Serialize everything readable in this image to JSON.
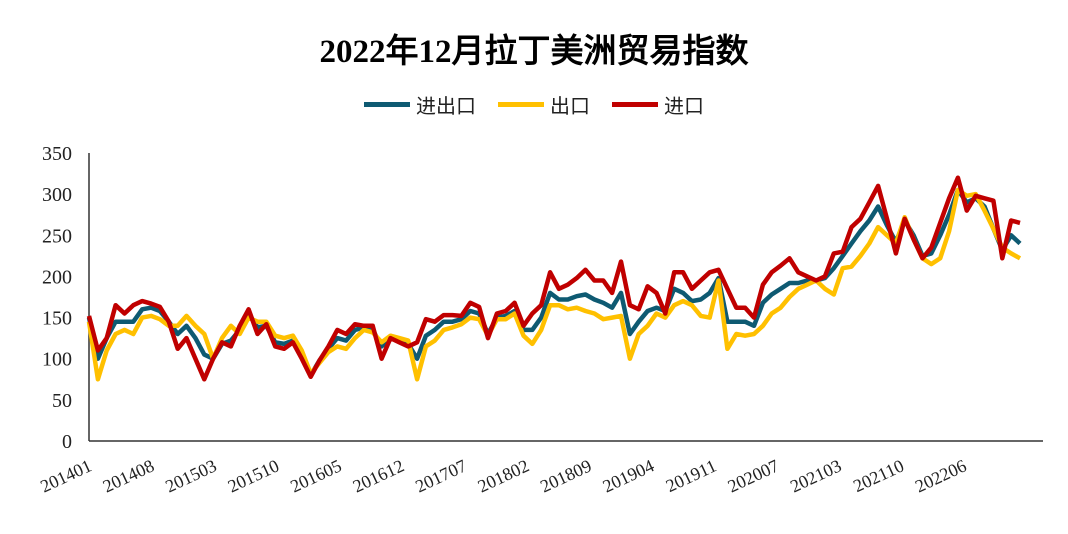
{
  "chart_data": {
    "type": "line",
    "title": "2022年12月拉丁美洲贸易指数",
    "xlabel": "",
    "ylabel": "",
    "ylim": [
      0,
      350
    ],
    "yticks": [
      0,
      50,
      100,
      150,
      200,
      250,
      300,
      350
    ],
    "x_tick_labels": [
      "201401",
      "201408",
      "201503",
      "201510",
      "201605",
      "201612",
      "201707",
      "201802",
      "201809",
      "201904",
      "201911",
      "202007",
      "202103",
      "202110",
      "202206"
    ],
    "grid": false,
    "legend_position": "top",
    "series": [
      {
        "name": "进出口",
        "color": "#0e5a72",
        "values": [
          150,
          100,
          125,
          145,
          145,
          145,
          160,
          162,
          158,
          145,
          130,
          140,
          125,
          105,
          100,
          118,
          122,
          135,
          155,
          138,
          140,
          120,
          118,
          122,
          105,
          80,
          98,
          112,
          125,
          122,
          135,
          138,
          135,
          115,
          125,
          122,
          118,
          100,
          128,
          135,
          145,
          145,
          148,
          158,
          155,
          130,
          150,
          152,
          158,
          135,
          135,
          150,
          180,
          172,
          172,
          176,
          178,
          172,
          168,
          162,
          180,
          130,
          145,
          158,
          162,
          158,
          185,
          180,
          170,
          172,
          180,
          198,
          145,
          145,
          145,
          140,
          168,
          178,
          185,
          192,
          192,
          195,
          195,
          198,
          210,
          225,
          240,
          255,
          268,
          285,
          262,
          242,
          268,
          250,
          225,
          228,
          250,
          275,
          305,
          290,
          295,
          285,
          258,
          232,
          250,
          240
        ]
      },
      {
        "name": "出口",
        "color": "#ffc000",
        "values": [
          145,
          75,
          110,
          130,
          135,
          130,
          150,
          152,
          148,
          140,
          140,
          152,
          140,
          130,
          100,
          125,
          140,
          130,
          150,
          145,
          145,
          128,
          125,
          128,
          110,
          82,
          95,
          108,
          115,
          112,
          125,
          135,
          132,
          120,
          128,
          125,
          122,
          75,
          115,
          122,
          135,
          138,
          142,
          150,
          148,
          128,
          148,
          148,
          155,
          128,
          118,
          135,
          165,
          165,
          160,
          162,
          158,
          155,
          148,
          150,
          152,
          100,
          130,
          140,
          155,
          150,
          165,
          170,
          165,
          152,
          150,
          195,
          112,
          130,
          128,
          130,
          140,
          155,
          162,
          175,
          185,
          190,
          195,
          185,
          178,
          210,
          212,
          225,
          240,
          260,
          250,
          240,
          272,
          245,
          222,
          215,
          222,
          255,
          305,
          298,
          300,
          280,
          258,
          235,
          228,
          222
        ]
      },
      {
        "name": "进口",
        "color": "#c00000",
        "values": [
          152,
          110,
          125,
          165,
          155,
          165,
          170,
          167,
          163,
          145,
          112,
          125,
          100,
          75,
          100,
          120,
          115,
          140,
          160,
          130,
          142,
          115,
          112,
          120,
          100,
          78,
          98,
          115,
          135,
          130,
          142,
          140,
          140,
          100,
          125,
          120,
          115,
          120,
          148,
          145,
          153,
          153,
          152,
          168,
          163,
          125,
          155,
          158,
          168,
          140,
          155,
          165,
          205,
          185,
          190,
          198,
          208,
          195,
          195,
          180,
          218,
          165,
          160,
          188,
          180,
          155,
          205,
          205,
          185,
          195,
          205,
          208,
          185,
          162,
          162,
          150,
          190,
          205,
          213,
          222,
          205,
          200,
          195,
          200,
          228,
          230,
          260,
          270,
          290,
          310,
          270,
          228,
          270,
          245,
          222,
          235,
          265,
          295,
          320,
          280,
          298,
          295,
          292,
          222,
          268,
          265
        ]
      }
    ]
  }
}
